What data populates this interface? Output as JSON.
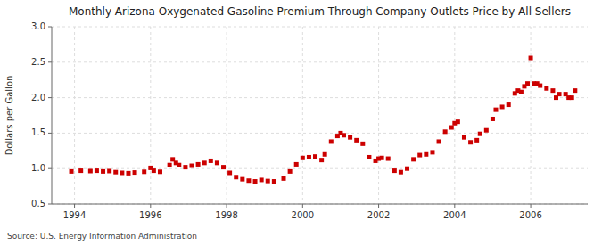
{
  "chart_data": {
    "type": "scatter",
    "title": "Monthly Arizona Oxygenated Gasoline Premium Through Company Outlets Price by All Sellers",
    "y_label": "Dollars per Gallon",
    "annotations": [
      "Source: U.S. Energy Information Administration"
    ],
    "color": "#cc0000",
    "marker": "square",
    "grid": true,
    "xlim": [
      1993.4,
      2007.5
    ],
    "xticks": [
      1994,
      1996,
      1998,
      2000,
      2002,
      2004,
      2006
    ],
    "ylim": [
      0.5,
      3.0
    ],
    "yticks": [
      0.5,
      {
        "value": 1.0,
        "label": "1.0"
      },
      1.5,
      {
        "value": 2.0,
        "label": "2.0"
      },
      2.5,
      {
        "value": 3.0,
        "label": "3.0"
      }
    ],
    "x": [
      1993.917,
      1994.167,
      1994.417,
      1994.583,
      1994.75,
      1994.917,
      1995.083,
      1995.25,
      1995.417,
      1995.583,
      1995.833,
      1996.0,
      1996.083,
      1996.25,
      1996.5,
      1996.583,
      1996.667,
      1996.75,
      1996.917,
      1997.083,
      1997.25,
      1997.417,
      1997.583,
      1997.75,
      1997.917,
      1998.083,
      1998.25,
      1998.417,
      1998.583,
      1998.75,
      1998.917,
      1999.083,
      1999.25,
      1999.5,
      1999.667,
      1999.833,
      2000.0,
      2000.167,
      2000.333,
      2000.5,
      2000.583,
      2000.75,
      2000.917,
      2001.0,
      2001.083,
      2001.25,
      2001.417,
      2001.583,
      2001.75,
      2001.917,
      2002.0,
      2002.083,
      2002.25,
      2002.417,
      2002.583,
      2002.75,
      2002.917,
      2003.083,
      2003.25,
      2003.417,
      2003.583,
      2003.75,
      2003.917,
      2004.0,
      2004.083,
      2004.25,
      2004.417,
      2004.583,
      2004.667,
      2004.833,
      2005.0,
      2005.083,
      2005.25,
      2005.417,
      2005.583,
      2005.667,
      2005.75,
      2005.833,
      2005.917,
      2006.0,
      2006.083,
      2006.167,
      2006.25,
      2006.417,
      2006.583,
      2006.667,
      2006.75,
      2006.917,
      2007.0,
      2007.083,
      2007.167
    ],
    "values": [
      0.96,
      0.97,
      0.965,
      0.97,
      0.96,
      0.965,
      0.95,
      0.94,
      0.935,
      0.945,
      0.955,
      1.01,
      0.97,
      0.955,
      1.05,
      1.13,
      1.08,
      1.05,
      1.02,
      1.04,
      1.06,
      1.08,
      1.11,
      1.08,
      1.02,
      0.94,
      0.88,
      0.85,
      0.83,
      0.82,
      0.84,
      0.825,
      0.82,
      0.86,
      0.96,
      1.06,
      1.15,
      1.16,
      1.17,
      1.12,
      1.2,
      1.38,
      1.46,
      1.5,
      1.47,
      1.44,
      1.4,
      1.35,
      1.16,
      1.11,
      1.14,
      1.15,
      1.14,
      0.97,
      0.95,
      1.0,
      1.13,
      1.19,
      1.2,
      1.23,
      1.38,
      1.52,
      1.58,
      1.64,
      1.66,
      1.44,
      1.37,
      1.4,
      1.49,
      1.54,
      1.7,
      1.83,
      1.87,
      1.9,
      2.06,
      2.1,
      2.08,
      2.16,
      2.2,
      2.56,
      2.2,
      2.2,
      2.17,
      2.13,
      2.1,
      2.0,
      2.05,
      2.05,
      2.0,
      2.0,
      2.1
    ]
  }
}
